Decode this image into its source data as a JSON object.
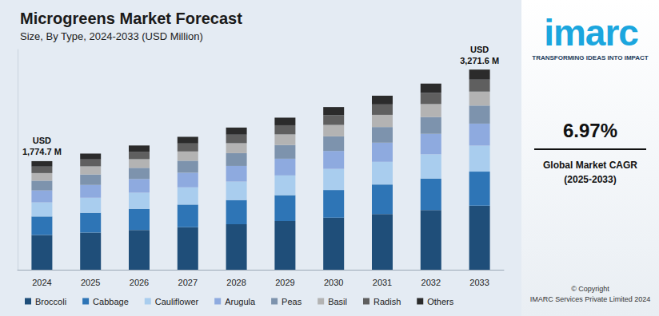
{
  "chart_data": {
    "type": "bar",
    "title": "Microgreens Market Forecast",
    "subtitle": "Size, By Type, 2024-2033 (USD Million)",
    "categories": [
      "2024",
      "2025",
      "2026",
      "2027",
      "2028",
      "2029",
      "2030",
      "2031",
      "2032",
      "2033"
    ],
    "series": [
      {
        "name": "Broccoli",
        "color": "#1f4e79",
        "values": [
          568.0,
          607.5,
          649.8,
          695.1,
          743.6,
          795.4,
          850.9,
          910.2,
          973.6,
          1046.9
        ]
      },
      {
        "name": "Cabbage",
        "color": "#2e75b6",
        "values": [
          301.7,
          322.7,
          345.2,
          369.3,
          395.0,
          422.6,
          452.0,
          483.5,
          517.2,
          556.2
        ]
      },
      {
        "name": "Cauliflower",
        "color": "#a9cdee",
        "values": [
          230.7,
          246.8,
          264.0,
          282.4,
          302.1,
          323.1,
          345.7,
          369.8,
          395.5,
          425.3
        ]
      },
      {
        "name": "Arugula",
        "color": "#8eaadf",
        "values": [
          195.2,
          208.8,
          223.4,
          239.0,
          255.6,
          273.4,
          292.5,
          312.9,
          334.7,
          359.9
        ]
      },
      {
        "name": "Peas",
        "color": "#7d93ad",
        "values": [
          159.7,
          170.9,
          182.8,
          195.5,
          209.1,
          223.7,
          239.3,
          256.0,
          273.8,
          294.4
        ]
      },
      {
        "name": "Basil",
        "color": "#b3b3b3",
        "values": [
          124.2,
          132.9,
          142.1,
          152.1,
          162.7,
          174.0,
          186.1,
          199.1,
          213.0,
          229.0
        ]
      },
      {
        "name": "Radish",
        "color": "#5f5f5f",
        "values": [
          106.5,
          113.9,
          121.8,
          130.3,
          139.4,
          149.1,
          159.5,
          170.7,
          182.6,
          196.3
        ]
      },
      {
        "name": "Others",
        "color": "#2b2b2b",
        "values": [
          88.7,
          94.9,
          101.5,
          108.6,
          116.2,
          124.3,
          133.0,
          142.2,
          152.1,
          163.6
        ]
      }
    ],
    "stacked": true,
    "ylim": [
      0,
      3600
    ],
    "tick_labels": "x",
    "grid": false,
    "legend": "bottom",
    "annotations": [
      {
        "category": "2024",
        "value": 1774.7,
        "label": "USD\n1,774.7 M"
      },
      {
        "category": "2033",
        "value": 3271.6,
        "label": "USD\n3,271.6 M"
      }
    ]
  },
  "side_panel": {
    "logo": "imarc",
    "tagline": "TRANSFORMING IDEAS INTO IMPACT",
    "cagr": "6.97%",
    "cagr_caption": "Global Market CAGR",
    "cagr_period": "(2025-2033)",
    "copyright": [
      "© Copyright",
      "IMARC Services Private Limited 2024"
    ]
  }
}
